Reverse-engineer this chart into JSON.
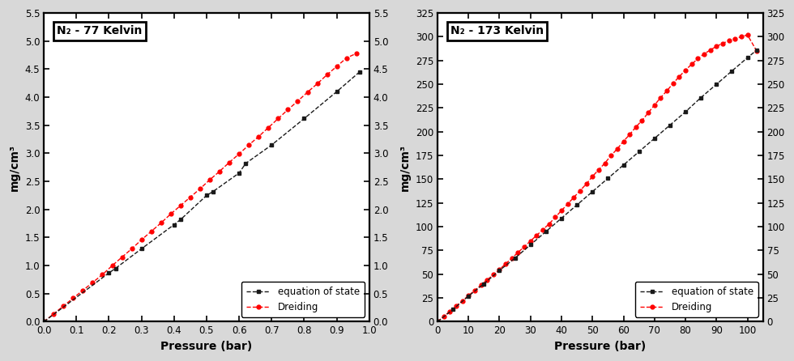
{
  "plot1": {
    "title": "N₂ - 77 Kelvin",
    "xlabel": "Pressure (bar)",
    "ylabel": "mg/cm³",
    "xlim": [
      0.0,
      1.0
    ],
    "ylim": [
      0.0,
      5.5
    ],
    "xticks": [
      0.0,
      0.1,
      0.2,
      0.3,
      0.4,
      0.5,
      0.6,
      0.7,
      0.8,
      0.9,
      1.0
    ],
    "yticks": [
      0.0,
      0.5,
      1.0,
      1.5,
      2.0,
      2.5,
      3.0,
      3.5,
      4.0,
      4.5,
      5.0,
      5.5
    ],
    "eos_x": [
      0.0,
      0.2,
      0.22,
      0.3,
      0.4,
      0.42,
      0.5,
      0.52,
      0.6,
      0.62,
      0.7,
      0.8,
      0.9,
      0.97
    ],
    "eos_y": [
      0.0,
      0.87,
      0.95,
      1.3,
      1.73,
      1.82,
      2.25,
      2.32,
      2.65,
      2.82,
      3.15,
      3.62,
      4.1,
      4.45
    ],
    "dreiding_x": [
      0.0,
      0.03,
      0.06,
      0.09,
      0.12,
      0.15,
      0.18,
      0.21,
      0.24,
      0.27,
      0.3,
      0.33,
      0.36,
      0.39,
      0.42,
      0.45,
      0.48,
      0.51,
      0.54,
      0.57,
      0.6,
      0.63,
      0.66,
      0.69,
      0.72,
      0.75,
      0.78,
      0.81,
      0.84,
      0.87,
      0.9,
      0.93,
      0.96
    ],
    "dreiding_y": [
      0.0,
      0.14,
      0.28,
      0.42,
      0.56,
      0.7,
      0.84,
      1.0,
      1.15,
      1.3,
      1.46,
      1.61,
      1.76,
      1.92,
      2.07,
      2.22,
      2.37,
      2.53,
      2.68,
      2.84,
      2.99,
      3.15,
      3.3,
      3.46,
      3.62,
      3.78,
      3.93,
      4.09,
      4.24,
      4.4,
      4.55,
      4.7,
      4.78
    ],
    "eos_color": "#1a1a1a",
    "dreiding_color": "#ff0000"
  },
  "plot2": {
    "title": "N₂ - 173 Kelvin",
    "xlabel": "Pressure (bar)",
    "ylabel": "mg/cm³",
    "xlim": [
      0,
      105
    ],
    "ylim": [
      0,
      325
    ],
    "xticks": [
      0,
      10,
      20,
      30,
      40,
      50,
      60,
      70,
      80,
      90,
      100
    ],
    "yticks": [
      0,
      25,
      50,
      75,
      100,
      125,
      150,
      175,
      200,
      225,
      250,
      275,
      300,
      325
    ],
    "eos_x": [
      0,
      5,
      10,
      15,
      20,
      25,
      30,
      35,
      40,
      45,
      50,
      55,
      60,
      65,
      70,
      75,
      80,
      85,
      90,
      95,
      100,
      103
    ],
    "eos_y": [
      0,
      13,
      27,
      40,
      54,
      67,
      81,
      95,
      109,
      123,
      137,
      151,
      165,
      179,
      193,
      207,
      221,
      236,
      250,
      264,
      278,
      286
    ],
    "dreiding_x": [
      0,
      2,
      4,
      6,
      8,
      10,
      12,
      14,
      16,
      18,
      20,
      22,
      24,
      26,
      28,
      30,
      32,
      34,
      36,
      38,
      40,
      42,
      44,
      46,
      48,
      50,
      52,
      54,
      56,
      58,
      60,
      62,
      64,
      66,
      68,
      70,
      72,
      74,
      76,
      78,
      80,
      82,
      84,
      86,
      88,
      90,
      92,
      94,
      96,
      98,
      100,
      103
    ],
    "dreiding_y": [
      0,
      5.5,
      11,
      16.5,
      22,
      27.5,
      33,
      38.5,
      44,
      49.5,
      55,
      61,
      67,
      73,
      79,
      85,
      91,
      97,
      103,
      110,
      117,
      124,
      131,
      138,
      145,
      153,
      160,
      167,
      175,
      182,
      190,
      197,
      205,
      212,
      220,
      228,
      236,
      243,
      251,
      258,
      265,
      271,
      277,
      282,
      286,
      290,
      293,
      296,
      298,
      300,
      302,
      285
    ],
    "eos_color": "#1a1a1a",
    "dreiding_color": "#ff0000"
  },
  "bg_color": "#d8d8d8",
  "panel_bg": "#ffffff",
  "legend_eos_label": "equation of state",
  "legend_dreiding_label": "Dreiding"
}
